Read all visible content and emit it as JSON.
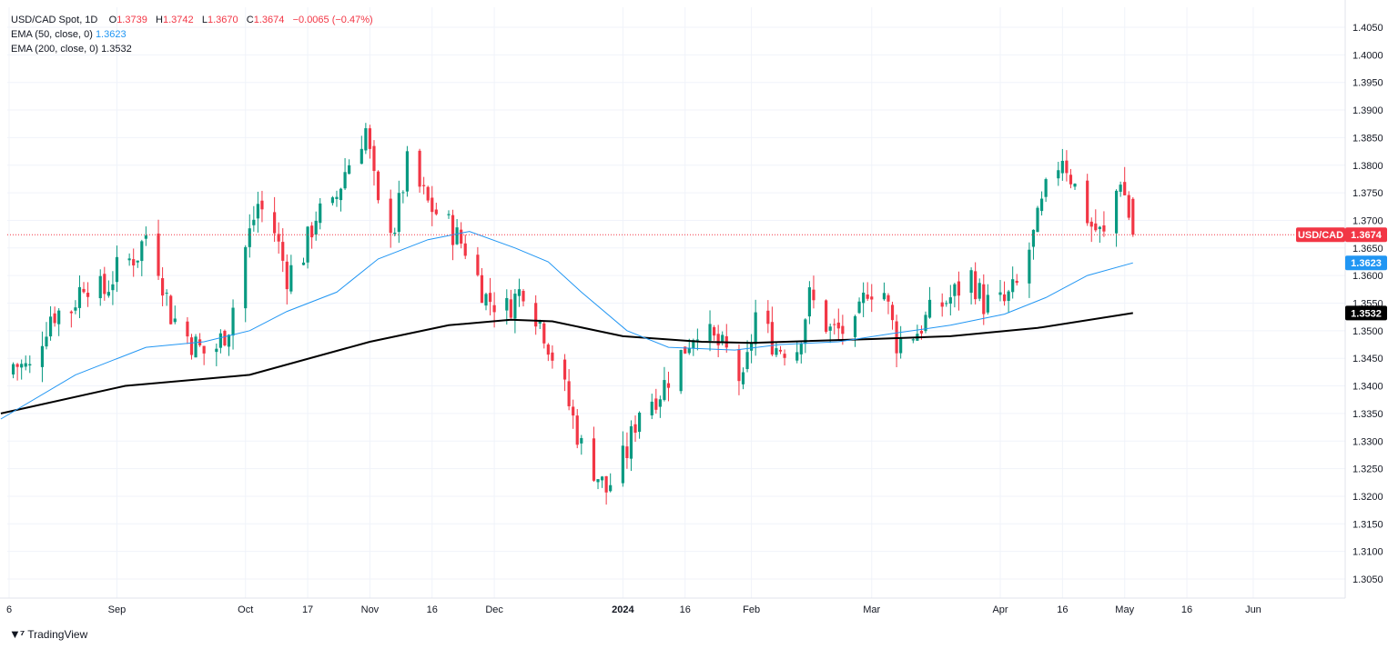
{
  "legend": {
    "symbol": "USD/CAD Spot, 1D",
    "o_label": "O",
    "o": "1.3739",
    "h_label": "H",
    "h": "1.3742",
    "l_label": "L",
    "l": "1.3670",
    "c_label": "C",
    "c": "1.3674",
    "change": "−0.0065 (−0.47%)",
    "ema50_label": "EMA (50, close, 0)",
    "ema50_value": "1.3623",
    "ema200_label": "EMA (200, close, 0)",
    "ema200_value": "1.3532"
  },
  "badges": {
    "pair_label": "USD/CAD",
    "price": "1.3674",
    "ema50": "1.3623",
    "ema200": "1.3532"
  },
  "brand": "TradingView",
  "colors": {
    "up": "#089981",
    "down": "#f23645",
    "ema50": "#2196f3",
    "ema200": "#000000",
    "grid": "#f0f3fa",
    "price_line": "#f23645"
  },
  "chart_data": {
    "type": "candlestick",
    "title": "USD/CAD Spot, 1D",
    "ylim": [
      1.3005,
      1.4078
    ],
    "y_ticks": [
      "1.4050",
      "1.4000",
      "1.3950",
      "1.3900",
      "1.3850",
      "1.3800",
      "1.3750",
      "1.3700",
      "1.3650",
      "1.3600",
      "1.3550",
      "1.3500",
      "1.3450",
      "1.3400",
      "1.3350",
      "1.3300",
      "1.3250",
      "1.3200",
      "1.3150",
      "1.3100",
      "1.3050"
    ],
    "x_ticks": [
      {
        "label": "6",
        "date": "2023-08-06"
      },
      {
        "label": "Sep",
        "date": "2023-09-01"
      },
      {
        "label": "Oct",
        "date": "2023-10-02"
      },
      {
        "label": "17",
        "date": "2023-10-17"
      },
      {
        "label": "Nov",
        "date": "2023-11-01"
      },
      {
        "label": "16",
        "date": "2023-11-16"
      },
      {
        "label": "Dec",
        "date": "2023-12-01"
      },
      {
        "label": "2024",
        "date": "2024-01-01"
      },
      {
        "label": "16",
        "date": "2024-01-16"
      },
      {
        "label": "Feb",
        "date": "2024-02-01"
      },
      {
        "label": "Mar",
        "date": "2024-03-01"
      },
      {
        "label": "Apr",
        "date": "2024-04-01"
      },
      {
        "label": "16",
        "date": "2024-04-16"
      },
      {
        "label": "May",
        "date": "2024-05-01"
      },
      {
        "label": "16",
        "date": "2024-05-16"
      },
      {
        "label": "Jun",
        "date": "2024-06-01"
      }
    ],
    "last_price": 1.3674,
    "ema50_last": 1.3623,
    "ema200_last": 1.3532,
    "close_path": [
      {
        "date": "2023-08-07",
        "close": 1.344
      },
      {
        "date": "2023-08-11",
        "close": 1.343
      },
      {
        "date": "2023-08-16",
        "close": 1.353
      },
      {
        "date": "2023-08-21",
        "close": 1.354
      },
      {
        "date": "2023-08-24",
        "close": 1.359
      },
      {
        "date": "2023-08-29",
        "close": 1.357
      },
      {
        "date": "2023-09-01",
        "close": 1.361
      },
      {
        "date": "2023-09-06",
        "close": 1.364
      },
      {
        "date": "2023-09-08",
        "close": 1.3675
      },
      {
        "date": "2023-09-11",
        "close": 1.362
      },
      {
        "date": "2023-09-14",
        "close": 1.353
      },
      {
        "date": "2023-09-19",
        "close": 1.348
      },
      {
        "date": "2023-09-22",
        "close": 1.346
      },
      {
        "date": "2023-09-25",
        "close": 1.347
      },
      {
        "date": "2023-09-28",
        "close": 1.351
      },
      {
        "date": "2023-10-02",
        "close": 1.365
      },
      {
        "date": "2023-10-05",
        "close": 1.373
      },
      {
        "date": "2023-10-09",
        "close": 1.368
      },
      {
        "date": "2023-10-12",
        "close": 1.36
      },
      {
        "date": "2023-10-16",
        "close": 1.364
      },
      {
        "date": "2023-10-19",
        "close": 1.371
      },
      {
        "date": "2023-10-23",
        "close": 1.372
      },
      {
        "date": "2023-10-26",
        "close": 1.379
      },
      {
        "date": "2023-10-31",
        "close": 1.3865
      },
      {
        "date": "2023-11-03",
        "close": 1.372
      },
      {
        "date": "2023-11-07",
        "close": 1.369
      },
      {
        "date": "2023-11-10",
        "close": 1.38
      },
      {
        "date": "2023-11-15",
        "close": 1.373
      },
      {
        "date": "2023-11-20",
        "close": 1.369
      },
      {
        "date": "2023-11-24",
        "close": 1.365
      },
      {
        "date": "2023-11-29",
        "close": 1.356
      },
      {
        "date": "2023-12-04",
        "close": 1.354
      },
      {
        "date": "2023-12-08",
        "close": 1.358
      },
      {
        "date": "2023-12-13",
        "close": 1.35
      },
      {
        "date": "2023-12-18",
        "close": 1.339
      },
      {
        "date": "2023-12-22",
        "close": 1.329
      },
      {
        "date": "2023-12-28",
        "close": 1.321
      },
      {
        "date": "2024-01-02",
        "close": 1.328
      },
      {
        "date": "2024-01-05",
        "close": 1.336
      },
      {
        "date": "2024-01-10",
        "close": 1.339
      },
      {
        "date": "2024-01-16",
        "close": 1.347
      },
      {
        "date": "2024-01-19",
        "close": 1.351
      },
      {
        "date": "2024-01-23",
        "close": 1.348
      },
      {
        "date": "2024-01-26",
        "close": 1.346
      },
      {
        "date": "2024-01-30",
        "close": 1.34
      },
      {
        "date": "2024-02-02",
        "close": 1.353
      },
      {
        "date": "2024-02-07",
        "close": 1.347
      },
      {
        "date": "2024-02-12",
        "close": 1.347
      },
      {
        "date": "2024-02-15",
        "close": 1.356
      },
      {
        "date": "2024-02-20",
        "close": 1.35
      },
      {
        "date": "2024-02-26",
        "close": 1.35
      },
      {
        "date": "2024-02-29",
        "close": 1.358
      },
      {
        "date": "2024-03-04",
        "close": 1.357
      },
      {
        "date": "2024-03-07",
        "close": 1.348
      },
      {
        "date": "2024-03-12",
        "close": 1.35
      },
      {
        "date": "2024-03-15",
        "close": 1.353
      },
      {
        "date": "2024-03-20",
        "close": 1.356
      },
      {
        "date": "2024-03-25",
        "close": 1.36
      },
      {
        "date": "2024-03-28",
        "close": 1.355
      },
      {
        "date": "2024-04-02",
        "close": 1.355
      },
      {
        "date": "2024-04-05",
        "close": 1.358
      },
      {
        "date": "2024-04-09",
        "close": 1.367
      },
      {
        "date": "2024-04-12",
        "close": 1.375
      },
      {
        "date": "2024-04-16",
        "close": 1.382
      },
      {
        "date": "2024-04-19",
        "close": 1.376
      },
      {
        "date": "2024-04-23",
        "close": 1.369
      },
      {
        "date": "2024-04-26",
        "close": 1.367
      },
      {
        "date": "2024-04-30",
        "close": 1.378
      },
      {
        "date": "2024-05-03",
        "close": 1.3674
      }
    ],
    "ema50": [
      {
        "date": "2023-08-04",
        "value": 1.334
      },
      {
        "date": "2023-08-22",
        "value": 1.342
      },
      {
        "date": "2023-09-08",
        "value": 1.347
      },
      {
        "date": "2023-09-22",
        "value": 1.348
      },
      {
        "date": "2023-10-03",
        "value": 1.35
      },
      {
        "date": "2023-10-12",
        "value": 1.3535
      },
      {
        "date": "2023-10-24",
        "value": 1.357
      },
      {
        "date": "2023-11-03",
        "value": 1.363
      },
      {
        "date": "2023-11-15",
        "value": 1.3665
      },
      {
        "date": "2023-11-25",
        "value": 1.368
      },
      {
        "date": "2023-12-06",
        "value": 1.365
      },
      {
        "date": "2023-12-14",
        "value": 1.3625
      },
      {
        "date": "2023-12-22",
        "value": 1.357
      },
      {
        "date": "2024-01-02",
        "value": 1.35
      },
      {
        "date": "2024-01-12",
        "value": 1.347
      },
      {
        "date": "2024-01-28",
        "value": 1.3465
      },
      {
        "date": "2024-02-08",
        "value": 1.3475
      },
      {
        "date": "2024-02-22",
        "value": 1.348
      },
      {
        "date": "2024-03-06",
        "value": 1.3495
      },
      {
        "date": "2024-03-20",
        "value": 1.351
      },
      {
        "date": "2024-04-02",
        "value": 1.353
      },
      {
        "date": "2024-04-12",
        "value": 1.356
      },
      {
        "date": "2024-04-22",
        "value": 1.36
      },
      {
        "date": "2024-05-03",
        "value": 1.3623
      }
    ],
    "ema200": [
      {
        "date": "2023-08-04",
        "value": 1.335
      },
      {
        "date": "2023-09-03",
        "value": 1.34
      },
      {
        "date": "2023-10-03",
        "value": 1.342
      },
      {
        "date": "2023-11-01",
        "value": 1.348
      },
      {
        "date": "2023-11-20",
        "value": 1.351
      },
      {
        "date": "2023-12-05",
        "value": 1.352
      },
      {
        "date": "2023-12-15",
        "value": 1.3517
      },
      {
        "date": "2024-01-01",
        "value": 1.349
      },
      {
        "date": "2024-01-20",
        "value": 1.348
      },
      {
        "date": "2024-02-01",
        "value": 1.3478
      },
      {
        "date": "2024-03-01",
        "value": 1.3485
      },
      {
        "date": "2024-03-20",
        "value": 1.349
      },
      {
        "date": "2024-04-10",
        "value": 1.3505
      },
      {
        "date": "2024-05-03",
        "value": 1.3532
      }
    ]
  }
}
